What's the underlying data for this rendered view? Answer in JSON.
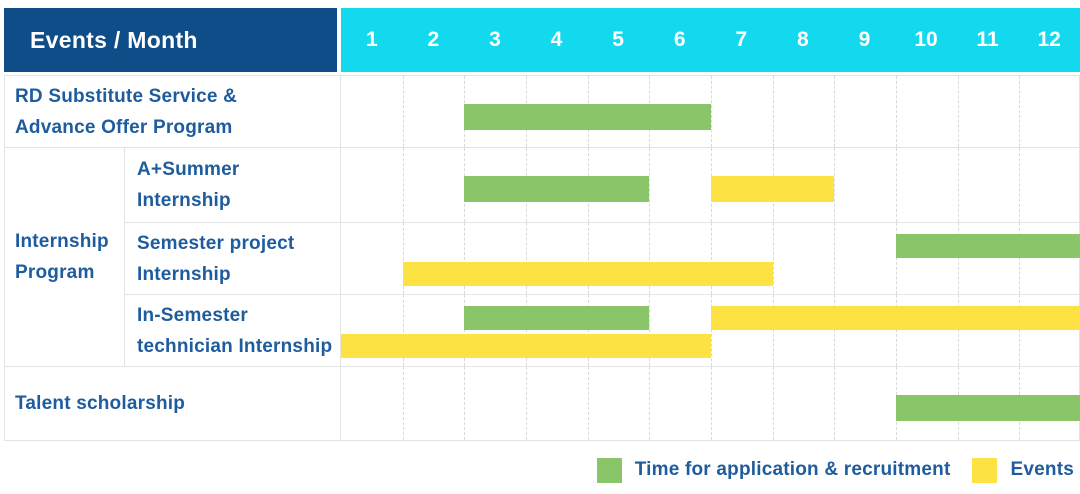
{
  "title_cell": "Events / Month",
  "months": [
    "1",
    "2",
    "3",
    "4",
    "5",
    "6",
    "7",
    "8",
    "9",
    "10",
    "11",
    "12"
  ],
  "colors": {
    "header_bg": "#0e4d87",
    "months_bg": "#12d9ee",
    "header_text": "#ffffff",
    "label_text": "#1e5c9e",
    "application_green": "#8bc56a",
    "events_yellow": "#fce343",
    "row_line": "#e3e3e3",
    "month_gridline": "#d9d9d9"
  },
  "legend": {
    "items": [
      {
        "label": "Time for application & recruitment",
        "series": "application",
        "color": "#8bc56a"
      },
      {
        "label": "Events",
        "series": "events",
        "color": "#fce343"
      }
    ]
  },
  "chart_data": {
    "type": "gantt",
    "title": "Events / Month",
    "x": {
      "unit": "month",
      "ticks": [
        1,
        2,
        3,
        4,
        5,
        6,
        7,
        8,
        9,
        10,
        11,
        12
      ],
      "range": [
        1,
        12
      ]
    },
    "group_label": "Internship Program",
    "group_label_lines": [
      "Internship",
      "Program"
    ],
    "series_legend": [
      "Time for application & recruitment",
      "Events"
    ],
    "rows": [
      {
        "label": "RD Substitute Service & Advance Offer Program",
        "label_lines": [
          "RD Substitute Service &",
          "Advance Offer Program"
        ],
        "group": "",
        "bars": [
          {
            "series": "application",
            "start_month": 3,
            "end_month": 6,
            "lane": "center"
          }
        ]
      },
      {
        "label": "A+Summer Internship",
        "label_lines": [
          "A+Summer",
          "Internship"
        ],
        "group": "Internship Program",
        "bars": [
          {
            "series": "application",
            "start_month": 3,
            "end_month": 5,
            "lane": "center"
          },
          {
            "series": "events",
            "start_month": 7,
            "end_month": 8,
            "lane": "center"
          }
        ]
      },
      {
        "label": "Semester project Internship",
        "label_lines": [
          "Semester project",
          "Internship"
        ],
        "group": "Internship Program",
        "bars": [
          {
            "series": "application",
            "start_month": 10,
            "end_month": 12,
            "lane": "upper"
          },
          {
            "series": "events",
            "start_month": 2,
            "end_month": 7,
            "lane": "lower"
          }
        ]
      },
      {
        "label": "In-Semester technician Internship",
        "label_lines": [
          "In-Semester",
          "technician Internship"
        ],
        "group": "Internship Program",
        "bars": [
          {
            "series": "application",
            "start_month": 3,
            "end_month": 5,
            "lane": "upper"
          },
          {
            "series": "events",
            "start_month": 7,
            "end_month": 12,
            "lane": "upper"
          },
          {
            "series": "events",
            "start_month": 1,
            "end_month": 6,
            "lane": "lower"
          }
        ]
      },
      {
        "label": "Talent scholarship",
        "label_lines": [
          "Talent scholarship"
        ],
        "group": "",
        "bars": [
          {
            "series": "application",
            "start_month": 10,
            "end_month": 12,
            "lane": "center"
          }
        ]
      }
    ]
  }
}
